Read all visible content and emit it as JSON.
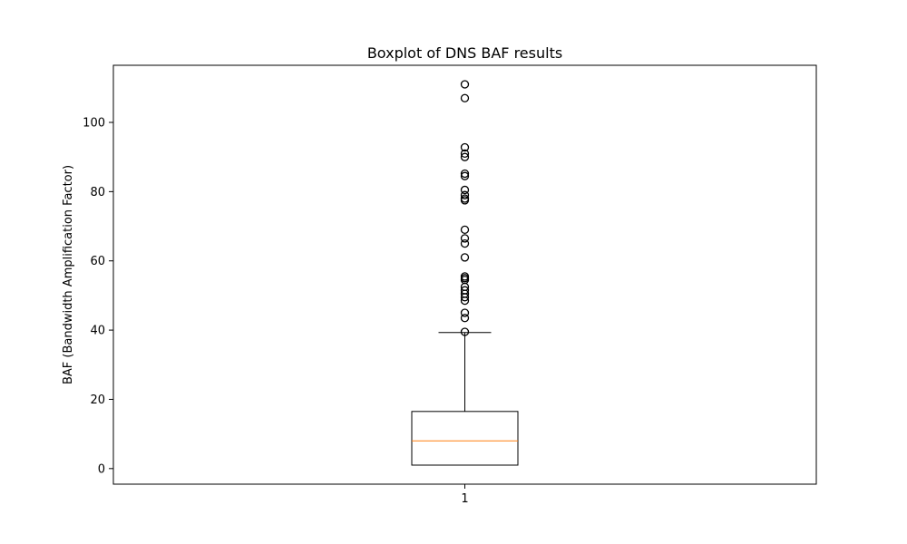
{
  "chart_data": {
    "type": "boxplot",
    "title": "Boxplot of DNS BAF results",
    "xlabel": "",
    "ylabel": "BAF (Bandwidth Amplification Factor)",
    "ylim": [
      -4.5,
      116.5
    ],
    "y_ticks": [
      0,
      20,
      40,
      60,
      80,
      100
    ],
    "x_ticks": [
      "1"
    ],
    "grid": false,
    "legend": "none",
    "series": [
      {
        "category": "1",
        "whisker_low": 1,
        "q1": 1,
        "median": 8,
        "q3": 16.5,
        "whisker_high": 39.3,
        "outliers": [
          39.5,
          43.5,
          45,
          48.5,
          49.5,
          50.5,
          51.5,
          52.5,
          54.5,
          55,
          55.5,
          61,
          65,
          66.5,
          69,
          77.5,
          78,
          79,
          80.5,
          84.5,
          85.2,
          90,
          91,
          92.8,
          107,
          111
        ]
      }
    ],
    "colors": {
      "box": "#000000",
      "median": "#ff7f0e",
      "outlier": "#000000",
      "frame": "#000000"
    }
  }
}
